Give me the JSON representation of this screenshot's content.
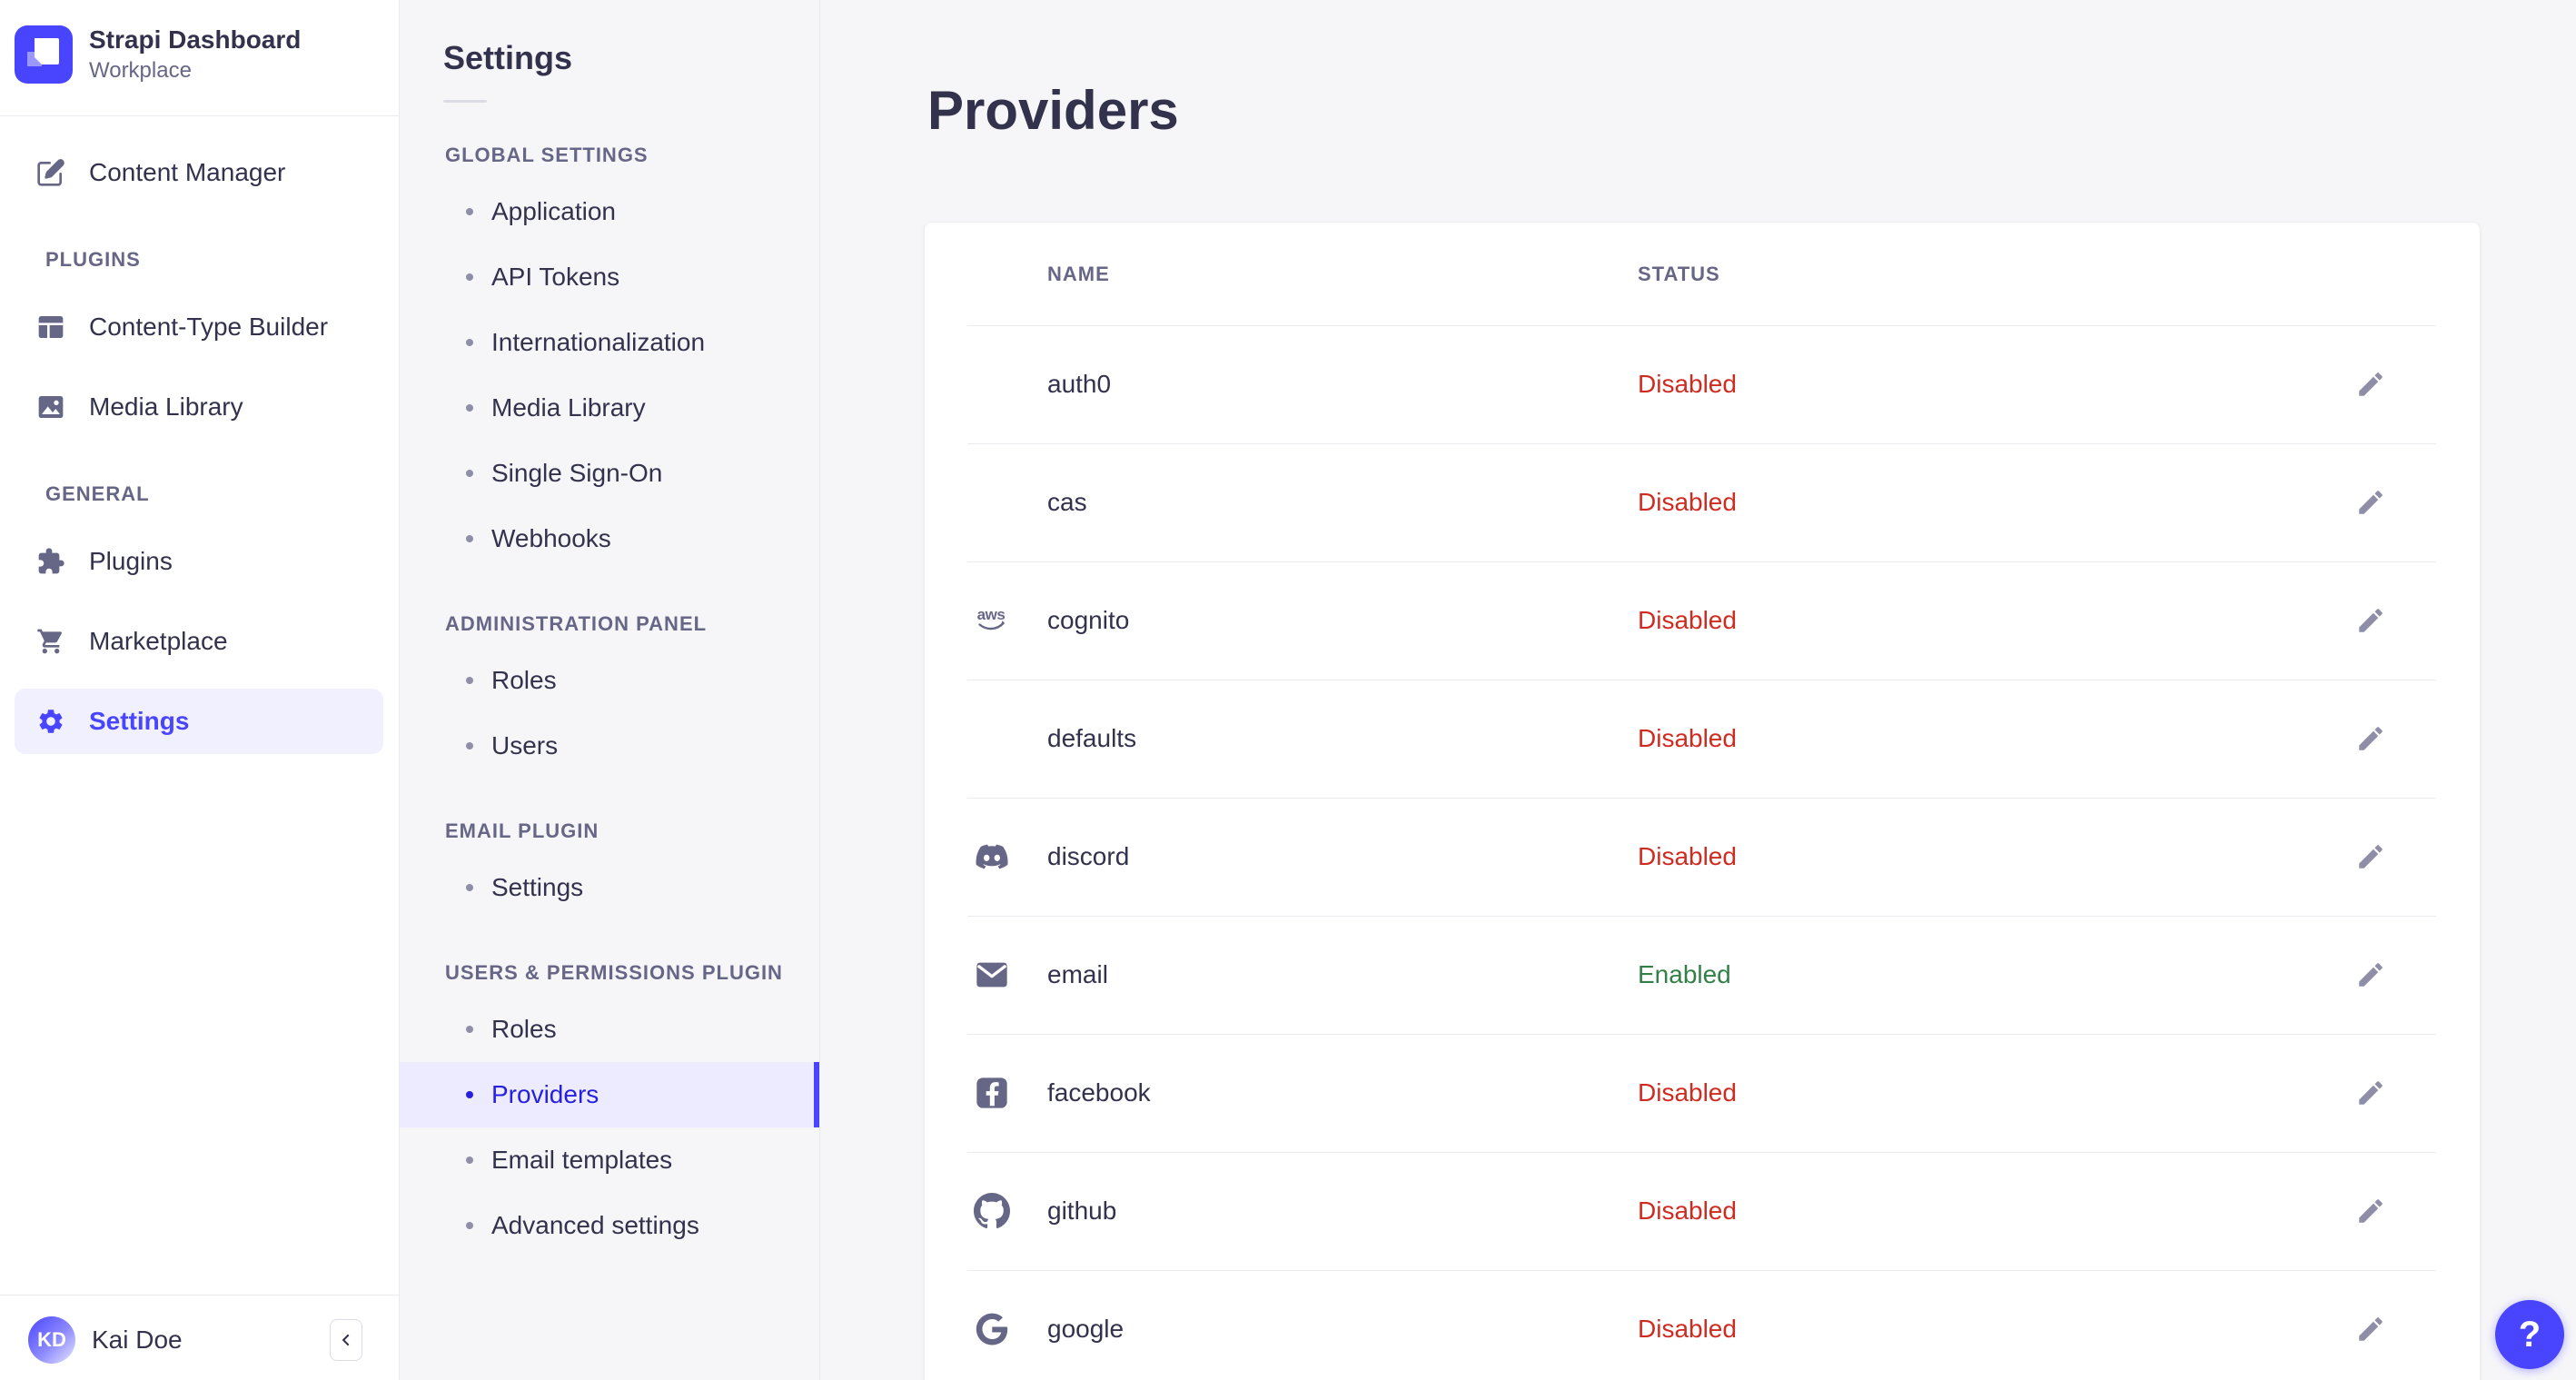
{
  "brand": {
    "name": "Strapi Dashboard",
    "workspace": "Workplace"
  },
  "sidebar": {
    "content_manager": {
      "label": "Content Manager",
      "icon": "content-manager"
    },
    "sections": [
      {
        "label": "PLUGINS",
        "items": [
          {
            "label": "Content-Type Builder",
            "icon": "content-type-builder",
            "selected": false
          },
          {
            "label": "Media Library",
            "icon": "media-library",
            "selected": false
          }
        ]
      },
      {
        "label": "GENERAL",
        "items": [
          {
            "label": "Plugins",
            "icon": "plugins",
            "selected": false
          },
          {
            "label": "Marketplace",
            "icon": "marketplace",
            "selected": false
          },
          {
            "label": "Settings",
            "icon": "settings",
            "selected": true
          }
        ]
      }
    ],
    "user": {
      "name": "Kai Doe",
      "initials": "KD"
    },
    "collapse_icon": "chevron-left"
  },
  "subnav": {
    "title": "Settings",
    "sections": [
      {
        "label": "GLOBAL SETTINGS",
        "items": [
          {
            "label": "Application",
            "selected": false
          },
          {
            "label": "API Tokens",
            "selected": false
          },
          {
            "label": "Internationalization",
            "selected": false
          },
          {
            "label": "Media Library",
            "selected": false
          },
          {
            "label": "Single Sign-On",
            "selected": false
          },
          {
            "label": "Webhooks",
            "selected": false
          }
        ]
      },
      {
        "label": "ADMINISTRATION PANEL",
        "items": [
          {
            "label": "Roles",
            "selected": false
          },
          {
            "label": "Users",
            "selected": false
          }
        ]
      },
      {
        "label": "EMAIL PLUGIN",
        "items": [
          {
            "label": "Settings",
            "selected": false
          }
        ]
      },
      {
        "label": "USERS & PERMISSIONS PLUGIN",
        "items": [
          {
            "label": "Roles",
            "selected": false
          },
          {
            "label": "Providers",
            "selected": true
          },
          {
            "label": "Email templates",
            "selected": false
          },
          {
            "label": "Advanced settings",
            "selected": false
          }
        ]
      }
    ]
  },
  "main": {
    "title": "Providers",
    "table": {
      "columns": [
        "NAME",
        "STATUS"
      ],
      "edit_icon": "pencil",
      "rows": [
        {
          "name": "auth0",
          "icon": null,
          "status": "Disabled",
          "enabled": false
        },
        {
          "name": "cas",
          "icon": null,
          "status": "Disabled",
          "enabled": false
        },
        {
          "name": "cognito",
          "icon": "aws",
          "status": "Disabled",
          "enabled": false
        },
        {
          "name": "defaults",
          "icon": null,
          "status": "Disabled",
          "enabled": false
        },
        {
          "name": "discord",
          "icon": "discord",
          "status": "Disabled",
          "enabled": false
        },
        {
          "name": "email",
          "icon": "email",
          "status": "Enabled",
          "enabled": true
        },
        {
          "name": "facebook",
          "icon": "facebook",
          "status": "Disabled",
          "enabled": false
        },
        {
          "name": "github",
          "icon": "github",
          "status": "Disabled",
          "enabled": false
        },
        {
          "name": "google",
          "icon": "google",
          "status": "Disabled",
          "enabled": false
        }
      ]
    }
  },
  "help": {
    "label": "?",
    "icon": "question-mark"
  },
  "colors": {
    "primary": "#4945ff",
    "primary_dark": "#271fe0",
    "text_dark": "#32324d",
    "text_gray": "#666687",
    "status_enabled": "#328048",
    "status_disabled": "#d02b20",
    "background": "#f6f6f9"
  }
}
